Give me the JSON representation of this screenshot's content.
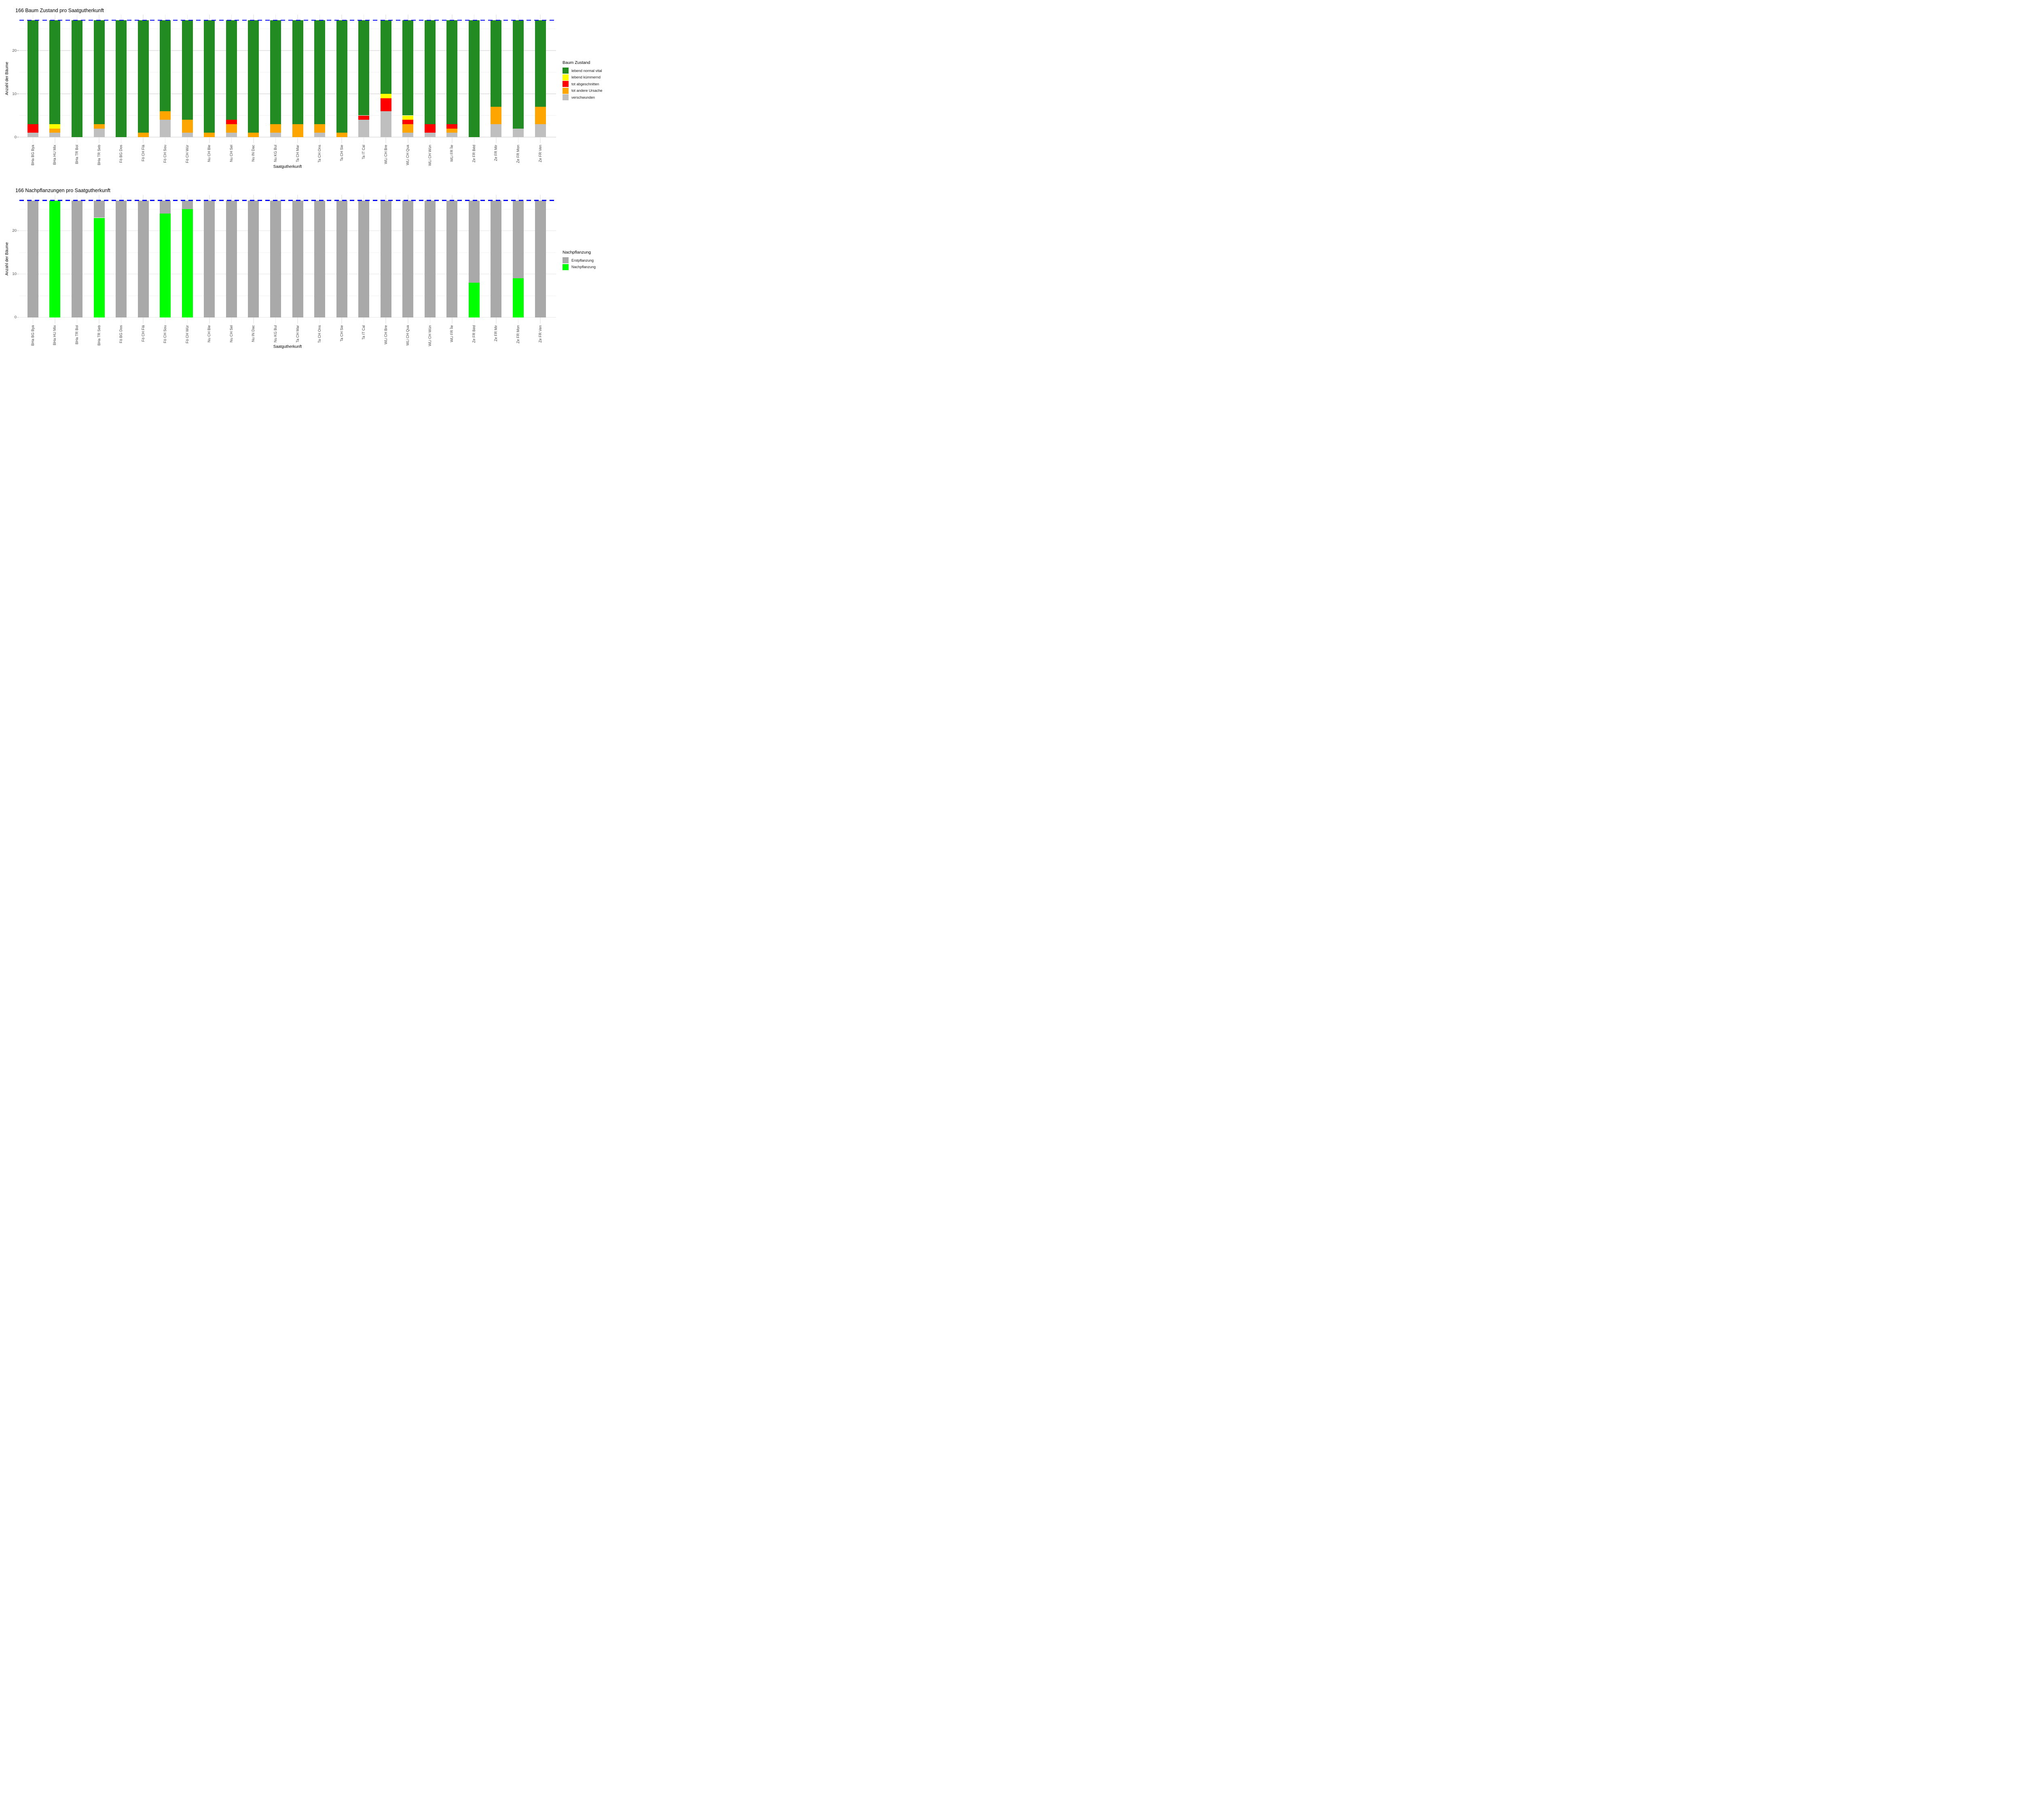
{
  "chart_data": [
    {
      "type": "bar",
      "stacked": true,
      "title": "166 Baum Zustand pro Saatgutherkunft",
      "xlabel": "Saatgutherkunft",
      "ylabel": "Anzahl der Bäume",
      "legend_title": "Baum Zustand",
      "legend_position": "right",
      "grid": true,
      "yticks": [
        0,
        10,
        20
      ],
      "minor_gridlines": [
        5,
        15,
        25
      ],
      "ylim": [
        -1.35,
        28.35
      ],
      "reference_line": {
        "value": 27,
        "color": "#0000FF",
        "style": "dashed"
      },
      "categories": [
        "BHa BG Bya",
        "BHa HU Mix",
        "BHa TR Bol",
        "BHa TR Seb",
        "Fö BG Dos",
        "Fö CH Flä",
        "Fö CH Sou",
        "Fö CH Wür",
        "Nu CH Ble",
        "Nu CH Sel",
        "Nu IN Dac",
        "Nu KG Bul",
        "Ta CH Mar",
        "Ta CH Ons",
        "Ta CH Sie",
        "Ta IT Cal",
        "WLi CH Bre",
        "WLi CH Qua",
        "WLi CH Wün",
        "WLi FR Île",
        "Ze FR Béd",
        "Ze FR Mir",
        "Ze FR Mon",
        "Ze FR Ven"
      ],
      "series": [
        {
          "name": "verschwunden",
          "color": "#BFBFBF",
          "values": [
            1,
            1,
            0,
            2,
            0,
            0,
            4,
            1,
            0,
            1,
            0,
            1,
            0,
            1,
            0,
            4,
            6,
            1,
            1,
            1,
            0,
            3,
            2,
            3
          ]
        },
        {
          "name": "tot andere Ursache",
          "color": "#FFA500",
          "values": [
            0,
            1,
            0,
            1,
            0,
            1,
            2,
            3,
            1,
            2,
            1,
            2,
            3,
            2,
            1,
            0,
            0,
            2,
            0,
            1,
            0,
            4,
            0,
            4
          ]
        },
        {
          "name": "tot abgeschnitten",
          "color": "#FF0000",
          "values": [
            2,
            0,
            0,
            0,
            0,
            0,
            0,
            0,
            0,
            1,
            0,
            0,
            0,
            0,
            0,
            1,
            3,
            1,
            2,
            1,
            0,
            0,
            0,
            0
          ]
        },
        {
          "name": "lebend kümmernd",
          "color": "#FFFF00",
          "values": [
            0,
            1,
            0,
            0,
            0,
            0,
            0,
            0,
            0,
            0,
            0,
            0,
            0,
            0,
            0,
            0,
            1,
            1,
            0,
            0,
            0,
            0,
            0,
            0
          ]
        },
        {
          "name": "lebend normal vital",
          "color": "#228B22",
          "values": [
            24,
            24,
            27,
            24,
            27,
            26,
            21,
            23,
            26,
            23,
            26,
            24,
            24,
            24,
            26,
            22,
            17,
            22,
            24,
            24,
            27,
            20,
            25,
            20
          ]
        }
      ],
      "legend_order": [
        "lebend normal vital",
        "lebend kümmernd",
        "tot abgeschnitten",
        "tot andere Ursache",
        "verschwunden"
      ]
    },
    {
      "type": "bar",
      "stacked": true,
      "title": "166 Nachpflanzungen pro Saatgutherkunft",
      "xlabel": "Saatgutherkunft",
      "ylabel": "Anzahl der Bäume",
      "legend_title": "Nachpflanzung",
      "legend_position": "right",
      "grid": true,
      "yticks": [
        0,
        10,
        20
      ],
      "minor_gridlines": [
        5,
        15,
        25
      ],
      "ylim": [
        -1.35,
        28.35
      ],
      "reference_line": {
        "value": 27,
        "color": "#0000FF",
        "style": "dashed"
      },
      "categories": [
        "BHa BG Bya",
        "BHa HU Mix",
        "BHa TR Bol",
        "BHa TR Seb",
        "Fö BG Dos",
        "Fö CH Flä",
        "Fö CH Sou",
        "Fö CH Wür",
        "Nu CH Ble",
        "Nu CH Sel",
        "Nu IN Dac",
        "Nu KG Bul",
        "Ta CH Mar",
        "Ta CH Ons",
        "Ta CH Sie",
        "Ta IT Cal",
        "WLi CH Bre",
        "WLi CH Qua",
        "WLi CH Wün",
        "WLi FR Île",
        "Ze FR Béd",
        "Ze FR Mir",
        "Ze FR Mon",
        "Ze FR Ven"
      ],
      "series": [
        {
          "name": "Nachpflanzung",
          "color": "#00FF00",
          "values": [
            0,
            27,
            0,
            23,
            0,
            0,
            24,
            25,
            0,
            0,
            0,
            0,
            0,
            0,
            0,
            0,
            0,
            0,
            0,
            0,
            8,
            0,
            9,
            0
          ]
        },
        {
          "name": "Erstpflanzung",
          "color": "#A9A9A9",
          "values": [
            27,
            0,
            27,
            4,
            27,
            27,
            3,
            2,
            27,
            27,
            27,
            27,
            27,
            27,
            27,
            27,
            27,
            27,
            27,
            27,
            19,
            27,
            18,
            27
          ]
        }
      ],
      "legend_order": [
        "Erstpflanzung",
        "Nachpflanzung"
      ]
    }
  ]
}
